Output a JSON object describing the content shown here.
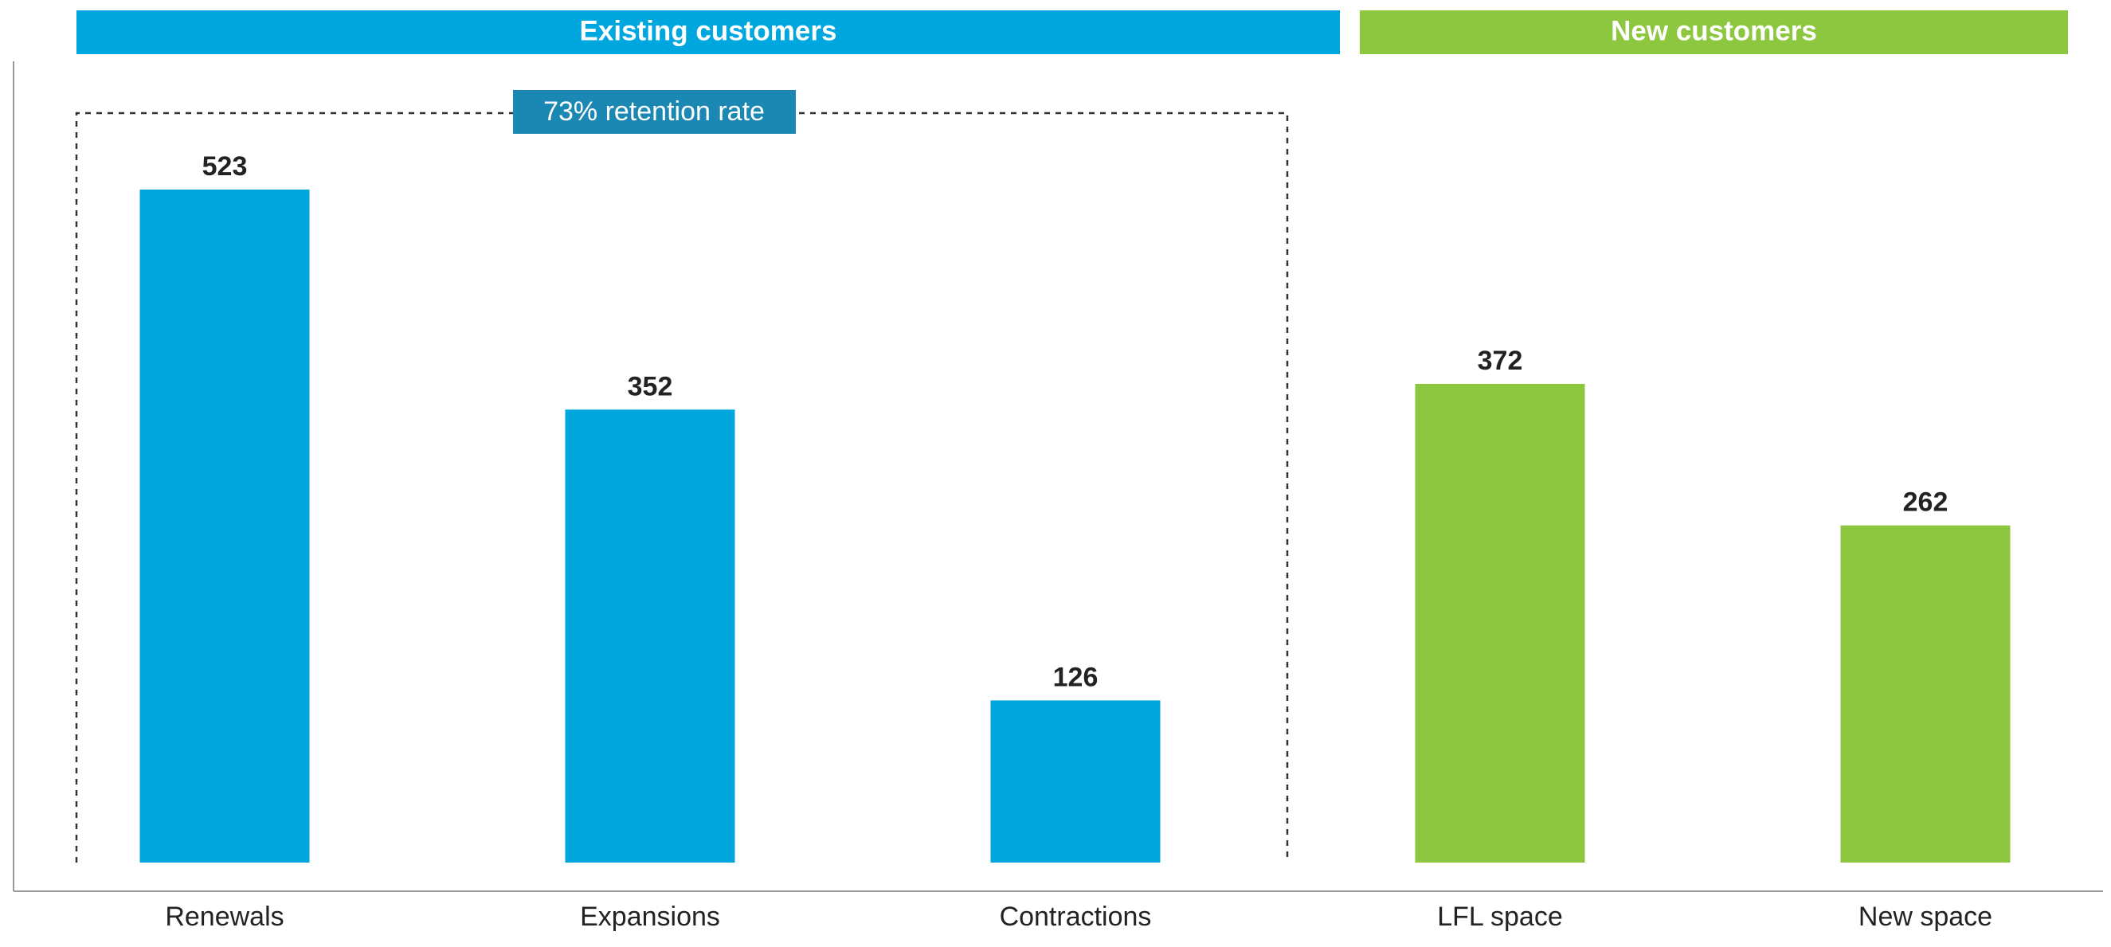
{
  "chart_data": {
    "type": "bar",
    "categories": [
      "Renewals",
      "Expansions",
      "Contractions",
      "LFL space",
      "New space"
    ],
    "values": [
      523,
      352,
      126,
      372,
      262
    ],
    "groups": [
      {
        "name": "Existing customers",
        "color": "#00a6de",
        "members": [
          "Renewals",
          "Expansions",
          "Contractions"
        ]
      },
      {
        "name": "New customers",
        "color": "#8dc63f",
        "members": [
          "LFL space",
          "New space"
        ]
      }
    ],
    "annotation": "73% retention rate",
    "annotation_color": "#1b87b3"
  }
}
